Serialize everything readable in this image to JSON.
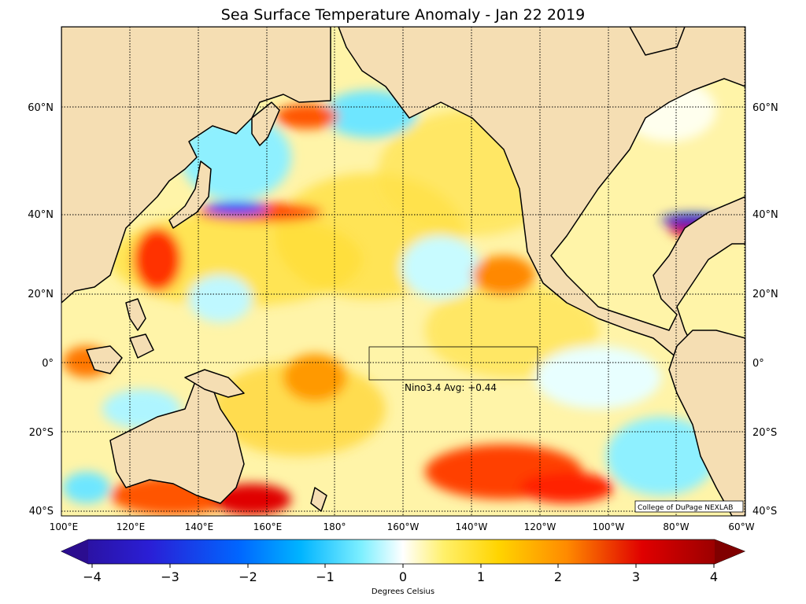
{
  "title": "Sea Surface Temperature Anomaly - Jan 22 2019",
  "map": {
    "lat_labels": [
      "60°N",
      "40°N",
      "20°N",
      "0°",
      "20°S",
      "40°S"
    ],
    "lon_labels": [
      "100°E",
      "120°E",
      "140°E",
      "160°E",
      "180°",
      "160°W",
      "140°W",
      "120°W",
      "100°W",
      "80°W",
      "60°W"
    ],
    "nino_box_label": "Nino3.4 Avg: +0.44",
    "credit": "College of DuPage NEXLAB",
    "land_color": "#f5deb3",
    "coast_color": "#000000"
  },
  "colorbar": {
    "ticks": [
      "−4",
      "−3",
      "−2",
      "−1",
      "0",
      "1",
      "2",
      "3",
      "4"
    ],
    "label": "Degrees Celsius",
    "range": [
      -4,
      4
    ]
  }
}
